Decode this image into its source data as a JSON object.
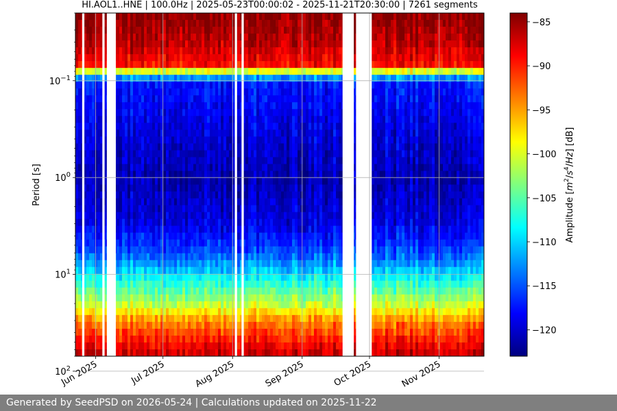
{
  "chart_data": {
    "type": "heatmap",
    "title": "HI.AOL1..HNE | 100.0Hz | 2025-05-23T00:00:02 - 2025-11-21T20:30:00 | 7261 segments",
    "ylabel": "Period [s]",
    "y_scale": "log",
    "y_inverted": true,
    "ylim": [
      0.02,
      70
    ],
    "y_ticks": [
      {
        "value": 0.1,
        "base": "10",
        "exp": "−1"
      },
      {
        "value": 1,
        "base": "10",
        "exp": "0"
      },
      {
        "value": 10,
        "base": "10",
        "exp": "1"
      },
      {
        "value": 100,
        "base": "10",
        "exp": "2"
      }
    ],
    "xlim": [
      "2025-05-23",
      "2025-11-21"
    ],
    "x_ticks": [
      {
        "date": "2025-06-01",
        "label": "Jun 2025"
      },
      {
        "date": "2025-07-01",
        "label": "Jul 2025"
      },
      {
        "date": "2025-08-01",
        "label": "Aug 2025"
      },
      {
        "date": "2025-09-01",
        "label": "Sep 2025"
      },
      {
        "date": "2025-10-01",
        "label": "Oct 2025"
      },
      {
        "date": "2025-11-01",
        "label": "Nov 2025"
      }
    ],
    "grid": true,
    "colormap": "jet",
    "colorbar": {
      "label": "Amplitude [m²/s⁴/Hz] [dB]",
      "label_parts": [
        "Amplitude [",
        "m",
        "2",
        "/",
        "s",
        "4",
        "/",
        "Hz",
        "] [dB]"
      ],
      "range": [
        -123,
        -84
      ],
      "ticks": [
        -85,
        -90,
        -95,
        -100,
        -105,
        -110,
        -115,
        -120
      ],
      "tick_labels": [
        "−85",
        "−90",
        "−95",
        "−100",
        "−105",
        "−110",
        "−115",
        "−120"
      ]
    },
    "data_gaps": [
      [
        "2025-05-26",
        "2025-05-27"
      ],
      [
        "2025-06-04",
        "2025-06-05"
      ],
      [
        "2025-06-06",
        "2025-06-10"
      ],
      [
        "2025-08-02",
        "2025-08-03"
      ],
      [
        "2025-08-05",
        "2025-08-06"
      ],
      [
        "2025-09-19",
        "2025-09-24"
      ],
      [
        "2025-09-25",
        "2025-10-02"
      ]
    ],
    "spectrum_profile_db": [
      {
        "period": 0.02,
        "db": -84
      },
      {
        "period": 0.04,
        "db": -86
      },
      {
        "period": 0.07,
        "db": -89
      },
      {
        "period": 0.1,
        "db": -117
      },
      {
        "period": 0.3,
        "db": -119
      },
      {
        "period": 1,
        "db": -121
      },
      {
        "period": 3,
        "db": -119
      },
      {
        "period": 6,
        "db": -115
      },
      {
        "period": 10,
        "db": -109
      },
      {
        "period": 20,
        "db": -101
      },
      {
        "period": 30,
        "db": -94
      },
      {
        "period": 50,
        "db": -89
      },
      {
        "period": 70,
        "db": -86
      }
    ]
  },
  "footer": {
    "text": "Generated by SeedPSD on 2026-05-24 | Calculations updated on 2025-11-22"
  }
}
